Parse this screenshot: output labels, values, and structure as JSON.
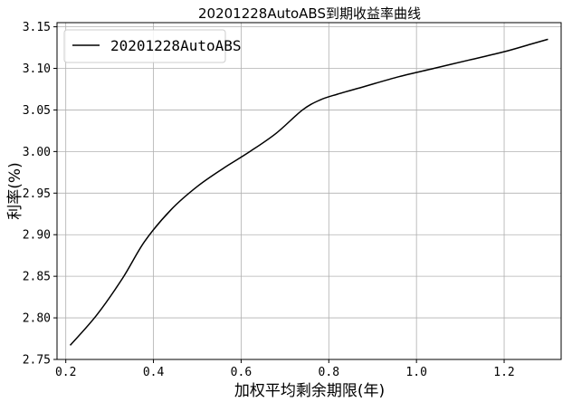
{
  "chart_data": {
    "type": "line",
    "title": "20201228AutoABS到期收益率曲线",
    "xlabel": "加权平均剩余期限(年)",
    "ylabel": "利率(%)",
    "xlim": [
      0.18,
      1.33
    ],
    "ylim": [
      2.75,
      3.155
    ],
    "xticks": [
      0.2,
      0.4,
      0.6,
      0.8,
      1.0,
      1.2
    ],
    "xtick_labels": [
      "0.2",
      "0.4",
      "0.6",
      "0.8",
      "1.0",
      "1.2"
    ],
    "yticks": [
      2.75,
      2.8,
      2.85,
      2.9,
      2.95,
      3.0,
      3.05,
      3.1,
      3.15
    ],
    "ytick_labels": [
      "2.75",
      "2.80",
      "2.85",
      "2.90",
      "2.95",
      "3.00",
      "3.05",
      "3.10",
      "3.15"
    ],
    "grid": true,
    "legend_position": "top-left",
    "series": [
      {
        "name": "20201228AutoABS",
        "color": "#000000",
        "x": [
          0.21,
          0.27,
          0.33,
          0.38,
          0.44,
          0.5,
          0.56,
          0.62,
          0.68,
          0.74,
          0.78,
          0.82,
          0.88,
          0.96,
          1.04,
          1.12,
          1.2,
          1.26,
          1.3
        ],
        "y": [
          2.767,
          2.803,
          2.848,
          2.892,
          2.93,
          2.958,
          2.98,
          3.0,
          3.022,
          3.05,
          3.062,
          3.069,
          3.078,
          3.09,
          3.1,
          3.11,
          3.12,
          3.129,
          3.135
        ]
      }
    ]
  }
}
